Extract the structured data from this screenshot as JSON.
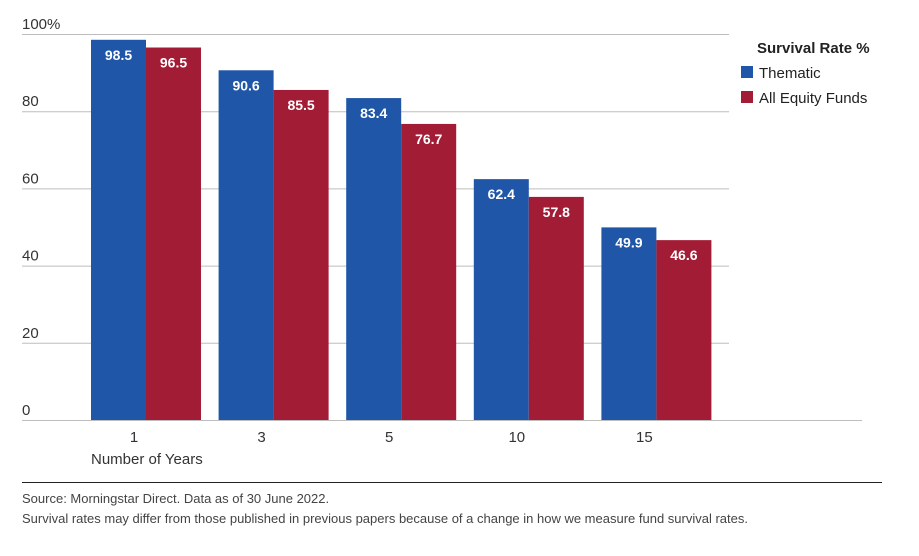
{
  "chart_data": {
    "type": "bar",
    "categories": [
      "1",
      "3",
      "5",
      "10",
      "15"
    ],
    "series": [
      {
        "name": "Thematic",
        "values": [
          98.5,
          90.6,
          83.4,
          62.4,
          49.9
        ],
        "color": "#1f56a8"
      },
      {
        "name": "All Equity Funds",
        "values": [
          96.5,
          85.5,
          76.7,
          57.8,
          46.6
        ],
        "color": "#a31c35"
      }
    ],
    "xlabel": "Number of Years",
    "ylabel": "",
    "ylim": [
      0,
      100
    ],
    "yticks": [
      "0",
      "20",
      "40",
      "60",
      "80",
      "100%"
    ],
    "legend_title": "Survival Rate %",
    "legend_position": "top-right",
    "grid": true
  },
  "footer": {
    "source": "Source: Morningstar Direct. Data as of 30 June 2022.",
    "note": "Survival rates may differ from those published in previous papers because of a change in how we measure fund survival rates."
  }
}
